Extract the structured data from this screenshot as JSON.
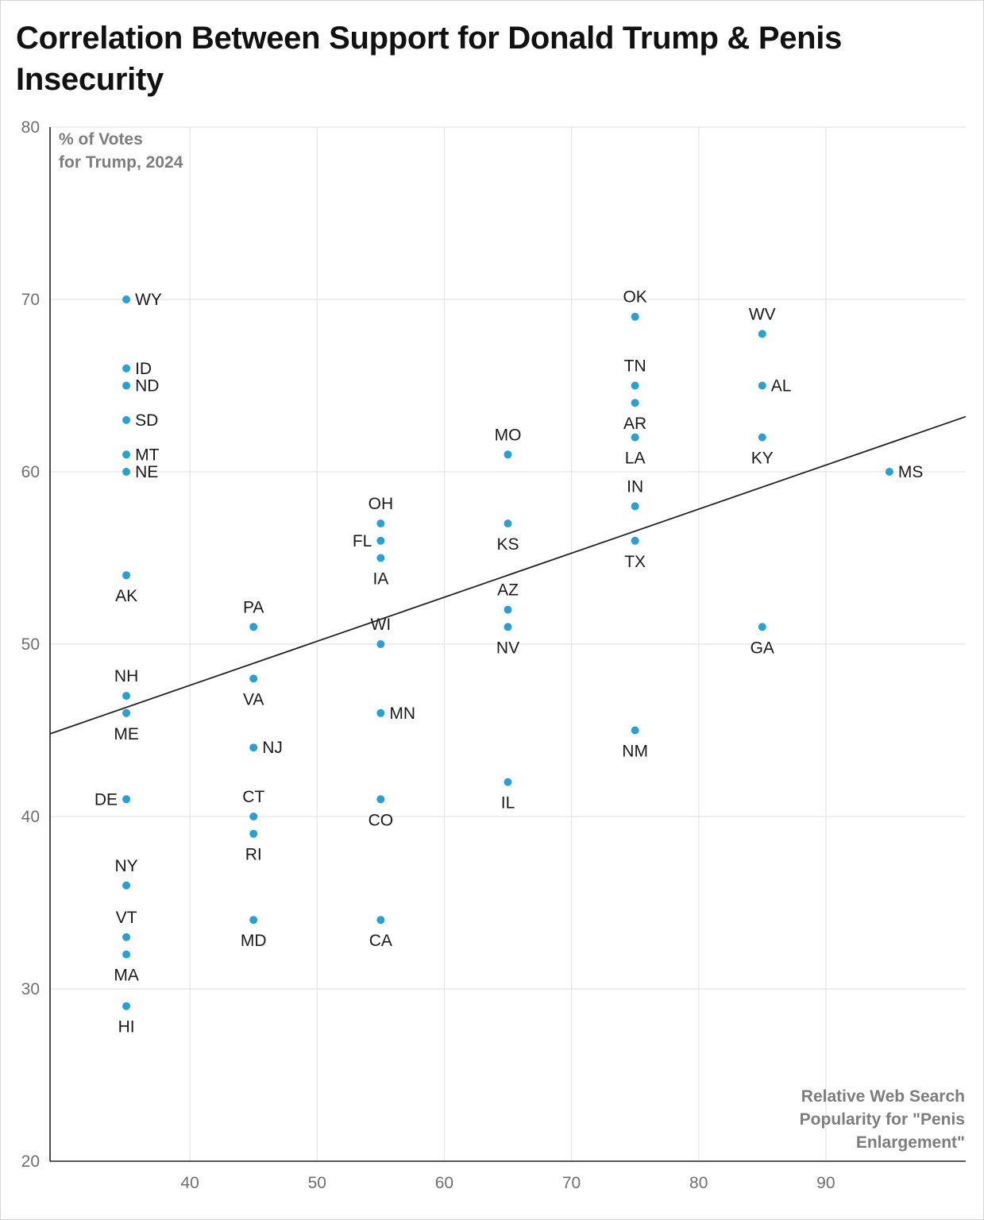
{
  "title": "Correlation Between Support for Donald Trump & Penis Insecurity",
  "chart_data": {
    "type": "scatter",
    "title": "Correlation Between Support for Donald Trump & Penis Insecurity",
    "xlabel": "Relative Web Search Popularity for \"Penis Enlargement\"",
    "ylabel": "% of Votes for Trump, 2024",
    "xlim": [
      29,
      101
    ],
    "ylim": [
      20,
      80
    ],
    "x_ticks": [
      40,
      50,
      60,
      70,
      80,
      90
    ],
    "y_ticks": [
      20,
      30,
      40,
      50,
      60,
      70,
      80
    ],
    "grid": true,
    "point_color": "#2a9fd0",
    "trendline": {
      "x": [
        29,
        101
      ],
      "y": [
        44.8,
        63.2
      ],
      "color": "#222222"
    },
    "points": [
      {
        "label": "WY",
        "x": 35,
        "y": 70,
        "pos": "right"
      },
      {
        "label": "ID",
        "x": 35,
        "y": 66,
        "pos": "right"
      },
      {
        "label": "ND",
        "x": 35,
        "y": 65,
        "pos": "right"
      },
      {
        "label": "SD",
        "x": 35,
        "y": 63,
        "pos": "right"
      },
      {
        "label": "MT",
        "x": 35,
        "y": 61,
        "pos": "right"
      },
      {
        "label": "NE",
        "x": 35,
        "y": 60,
        "pos": "right"
      },
      {
        "label": "AK",
        "x": 35,
        "y": 54,
        "pos": "below"
      },
      {
        "label": "NH",
        "x": 35,
        "y": 47,
        "pos": "above"
      },
      {
        "label": "ME",
        "x": 35,
        "y": 46,
        "pos": "below"
      },
      {
        "label": "DE",
        "x": 35,
        "y": 41,
        "pos": "left"
      },
      {
        "label": "NY",
        "x": 35,
        "y": 36,
        "pos": "above"
      },
      {
        "label": "VT",
        "x": 35,
        "y": 33,
        "pos": "above"
      },
      {
        "label": "MA",
        "x": 35,
        "y": 32,
        "pos": "below"
      },
      {
        "label": "HI",
        "x": 35,
        "y": 29,
        "pos": "below"
      },
      {
        "label": "PA",
        "x": 45,
        "y": 51,
        "pos": "above"
      },
      {
        "label": "VA",
        "x": 45,
        "y": 48,
        "pos": "below"
      },
      {
        "label": "NJ",
        "x": 45,
        "y": 44,
        "pos": "right"
      },
      {
        "label": "CT",
        "x": 45,
        "y": 40,
        "pos": "above"
      },
      {
        "label": "RI",
        "x": 45,
        "y": 39,
        "pos": "below"
      },
      {
        "label": "MD",
        "x": 45,
        "y": 34,
        "pos": "below"
      },
      {
        "label": "OH",
        "x": 55,
        "y": 57,
        "pos": "above"
      },
      {
        "label": "FL",
        "x": 55,
        "y": 56,
        "pos": "left"
      },
      {
        "label": "IA",
        "x": 55,
        "y": 55,
        "pos": "below"
      },
      {
        "label": "WI",
        "x": 55,
        "y": 50,
        "pos": "above"
      },
      {
        "label": "MN",
        "x": 55,
        "y": 46,
        "pos": "right"
      },
      {
        "label": "CO",
        "x": 55,
        "y": 41,
        "pos": "below"
      },
      {
        "label": "CA",
        "x": 55,
        "y": 34,
        "pos": "below"
      },
      {
        "label": "MO",
        "x": 65,
        "y": 61,
        "pos": "above"
      },
      {
        "label": "KS",
        "x": 65,
        "y": 57,
        "pos": "below"
      },
      {
        "label": "AZ",
        "x": 65,
        "y": 52,
        "pos": "above"
      },
      {
        "label": "NV",
        "x": 65,
        "y": 51,
        "pos": "below"
      },
      {
        "label": "IL",
        "x": 65,
        "y": 42,
        "pos": "below"
      },
      {
        "label": "OK",
        "x": 75,
        "y": 69,
        "pos": "above"
      },
      {
        "label": "TN",
        "x": 75,
        "y": 65,
        "pos": "above"
      },
      {
        "label": "AR",
        "x": 75,
        "y": 64,
        "pos": "below"
      },
      {
        "label": "LA",
        "x": 75,
        "y": 62,
        "pos": "below"
      },
      {
        "label": "IN",
        "x": 75,
        "y": 58,
        "pos": "above"
      },
      {
        "label": "TX",
        "x": 75,
        "y": 56,
        "pos": "below"
      },
      {
        "label": "NM",
        "x": 75,
        "y": 45,
        "pos": "below"
      },
      {
        "label": "WV",
        "x": 85,
        "y": 68,
        "pos": "above"
      },
      {
        "label": "AL",
        "x": 85,
        "y": 65,
        "pos": "right"
      },
      {
        "label": "KY",
        "x": 85,
        "y": 62,
        "pos": "below"
      },
      {
        "label": "GA",
        "x": 85,
        "y": 51,
        "pos": "below"
      },
      {
        "label": "MS",
        "x": 95,
        "y": 60,
        "pos": "right"
      }
    ]
  }
}
